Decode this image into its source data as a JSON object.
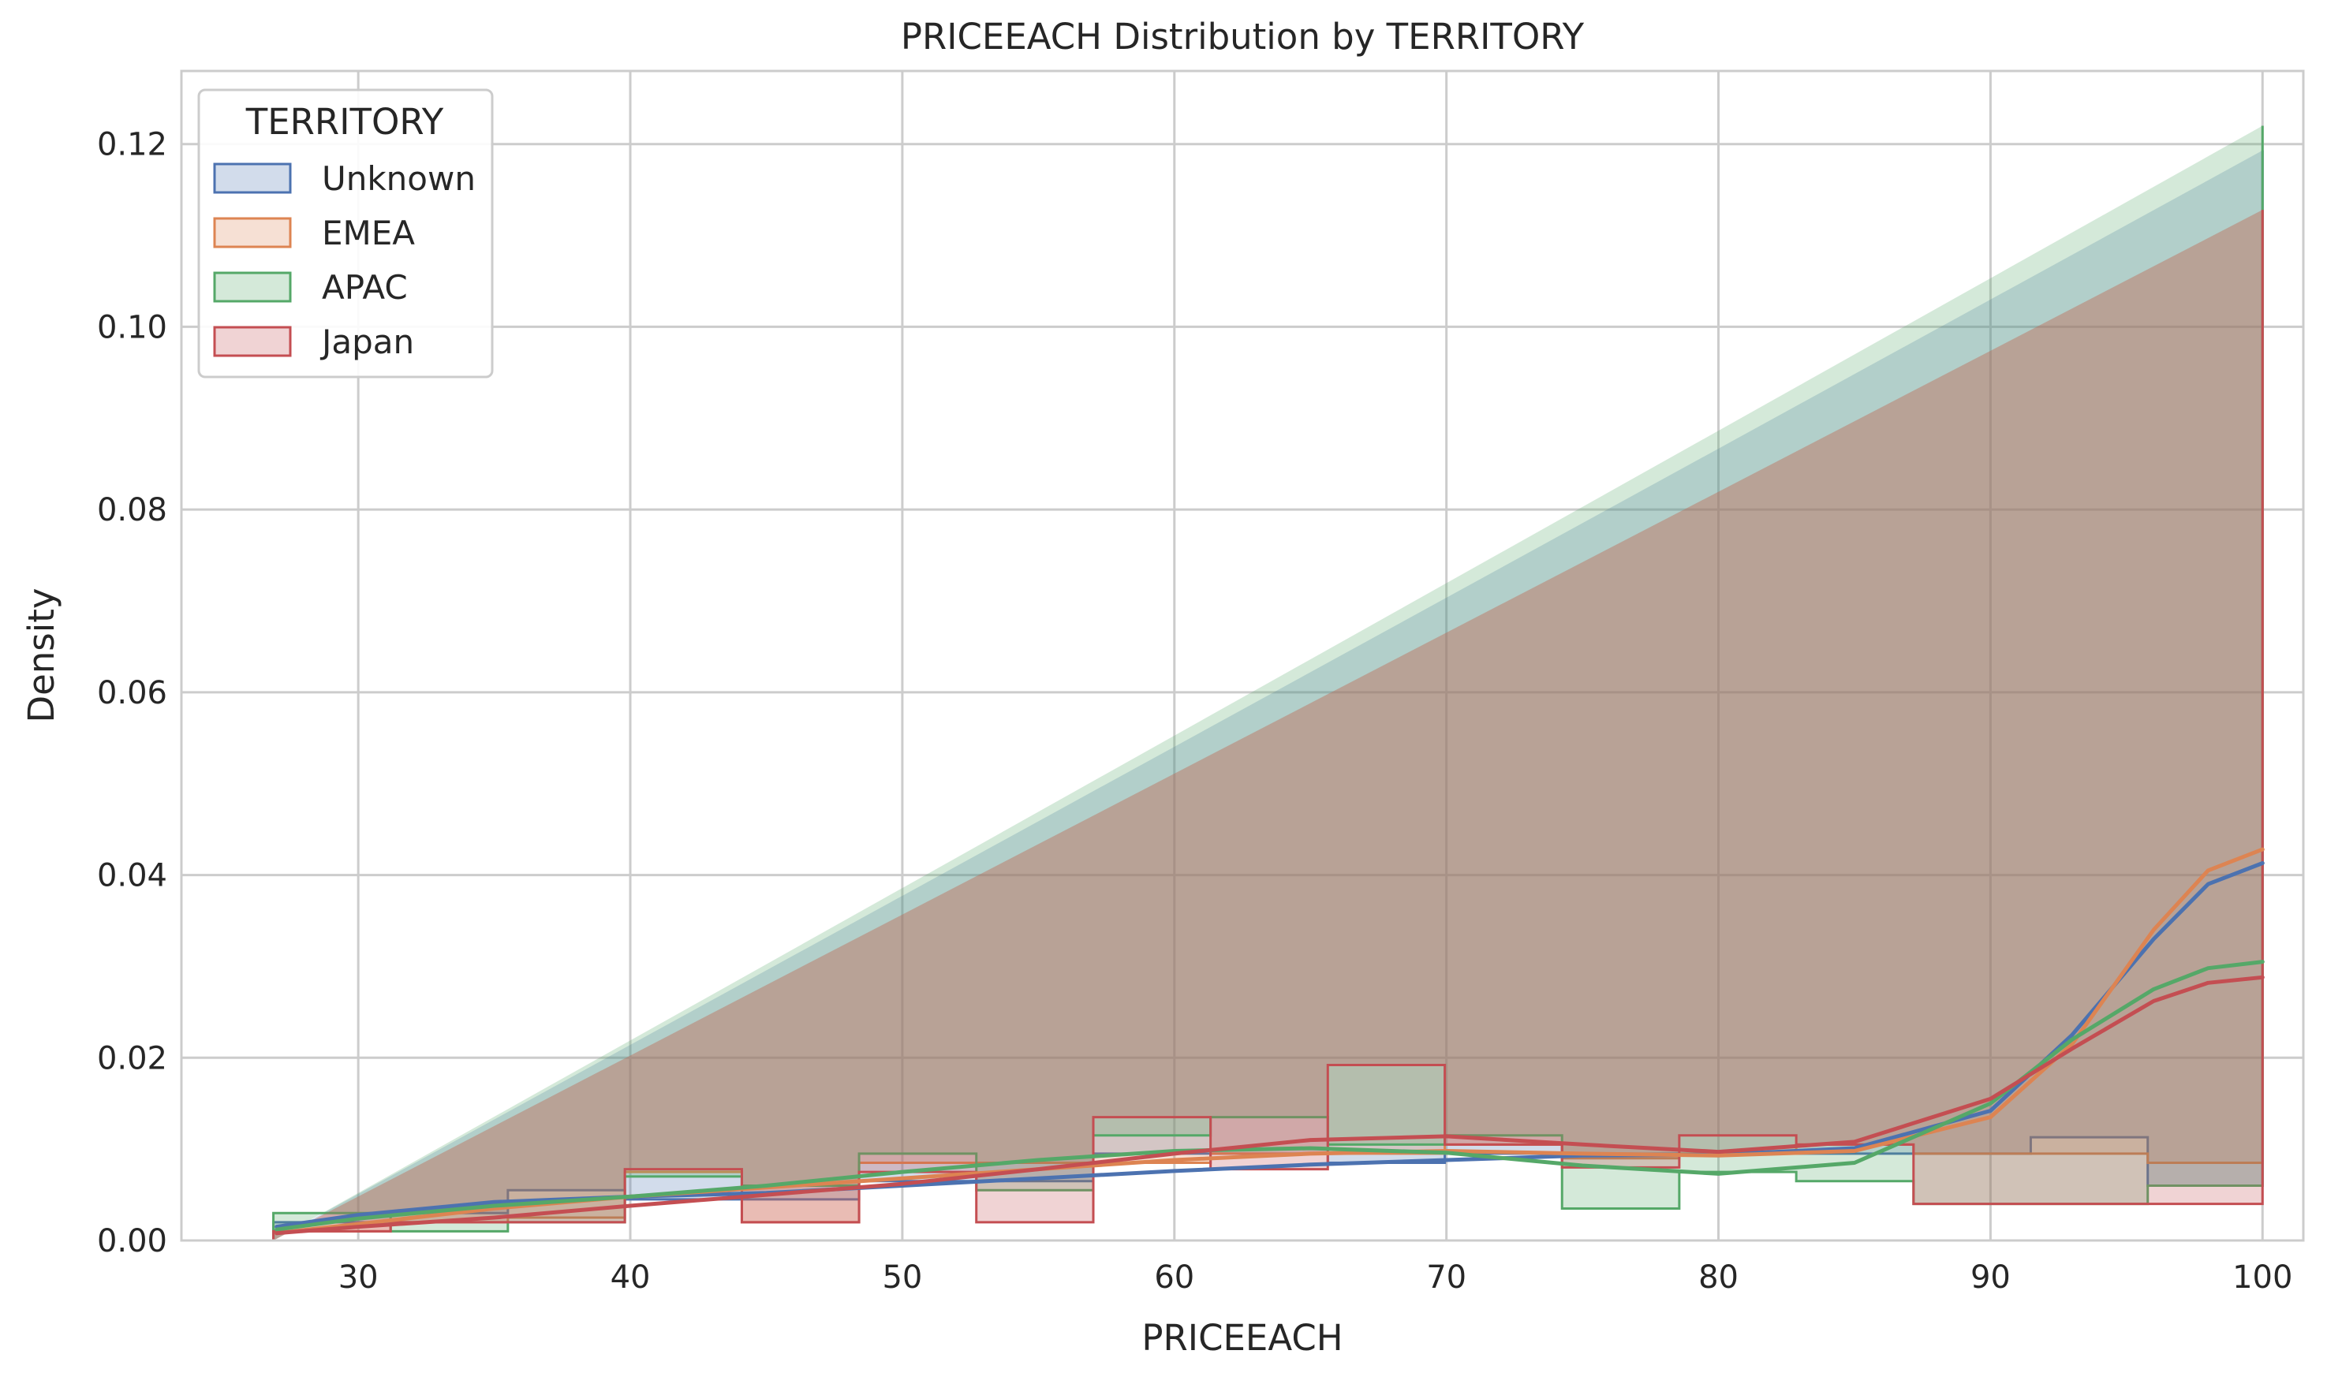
{
  "chart_data": {
    "type": "histogram",
    "title": "PRICEEACH Distribution by TERRITORY",
    "xlabel": "PRICEEACH",
    "ylabel": "Density",
    "xlim": [
      23.5,
      101.5
    ],
    "ylim": [
      0,
      0.128
    ],
    "xticks": [
      "30",
      "40",
      "50",
      "60",
      "70",
      "80",
      "90",
      "100"
    ],
    "xtick_values": [
      30,
      40,
      50,
      60,
      70,
      80,
      90,
      100
    ],
    "yticks": [
      "0.00",
      "0.02",
      "0.04",
      "0.06",
      "0.08",
      "0.10",
      "0.12"
    ],
    "ytick_values": [
      0,
      0.02,
      0.04,
      0.06,
      0.08,
      0.1,
      0.12
    ],
    "grid": true,
    "legend": {
      "title": "TERRITORY",
      "placement": "top-left"
    },
    "bin_edges": [
      26.88,
      31.19,
      35.5,
      39.8,
      44.1,
      48.41,
      52.72,
      57.02,
      61.33,
      65.64,
      69.94,
      74.25,
      78.56,
      82.86,
      87.17,
      91.48,
      95.78,
      100.0
    ],
    "series": [
      {
        "name": "Unknown",
        "color": "#4c72b0",
        "densities": [
          0.002,
          0.003,
          0.0055,
          0.0045,
          0.0045,
          0.0065,
          0.0065,
          0.0095,
          0.0095,
          0.0085,
          0.0095,
          0.0095,
          0.0095,
          0.0095,
          0.0095,
          0.0113,
          0.006,
          0.1193
        ],
        "kde_x": [
          27,
          30,
          35,
          40,
          45,
          50,
          55,
          60,
          65,
          70,
          75,
          80,
          85,
          90,
          93,
          96,
          98,
          100
        ],
        "kde_y": [
          0.0015,
          0.0028,
          0.0042,
          0.0048,
          0.0052,
          0.006,
          0.0068,
          0.0076,
          0.0083,
          0.0088,
          0.0093,
          0.0094,
          0.0101,
          0.0142,
          0.0225,
          0.033,
          0.039,
          0.0413
        ]
      },
      {
        "name": "EMEA",
        "color": "#dd8452",
        "densities": [
          0.001,
          0.002,
          0.0025,
          0.0075,
          0.002,
          0.0085,
          0.0085,
          0.0085,
          0.0095,
          0.0095,
          0.0105,
          0.009,
          0.0095,
          0.0105,
          0.0095,
          0.0095,
          0.0085,
          0.1128
        ],
        "kde_x": [
          27,
          30,
          35,
          40,
          45,
          50,
          55,
          60,
          65,
          70,
          75,
          80,
          85,
          90,
          93,
          96,
          98,
          100
        ],
        "kde_y": [
          0.0008,
          0.0018,
          0.0035,
          0.0048,
          0.0058,
          0.0068,
          0.0078,
          0.0088,
          0.0095,
          0.0098,
          0.0095,
          0.0093,
          0.0098,
          0.0135,
          0.0215,
          0.034,
          0.0405,
          0.0428
        ]
      },
      {
        "name": "APAC",
        "color": "#55a868",
        "densities": [
          0.003,
          0.001,
          0.002,
          0.007,
          0.006,
          0.0095,
          0.0055,
          0.0115,
          0.0135,
          0.0105,
          0.0115,
          0.0035,
          0.0075,
          0.0065,
          0.004,
          0.004,
          0.006,
          0.122
        ],
        "kde_x": [
          27,
          30,
          35,
          40,
          45,
          50,
          55,
          60,
          65,
          70,
          75,
          80,
          85,
          90,
          93,
          96,
          98,
          100
        ],
        "kde_y": [
          0.0012,
          0.0024,
          0.0038,
          0.0048,
          0.006,
          0.0075,
          0.0088,
          0.0098,
          0.0101,
          0.0096,
          0.0082,
          0.0073,
          0.0085,
          0.015,
          0.022,
          0.0275,
          0.0298,
          0.0305
        ]
      },
      {
        "name": "Japan",
        "color": "#c44e52",
        "densities": [
          0.001,
          0.002,
          0.002,
          0.0078,
          0.002,
          0.0075,
          0.002,
          0.0135,
          0.0078,
          0.0192,
          0.0105,
          0.008,
          0.0115,
          0.0105,
          0.004,
          0.004,
          0.004,
          0.1128
        ],
        "kde_x": [
          27,
          30,
          35,
          40,
          45,
          50,
          55,
          60,
          65,
          70,
          75,
          80,
          85,
          90,
          93,
          96,
          98,
          100
        ],
        "kde_y": [
          0.0008,
          0.0015,
          0.0025,
          0.0038,
          0.005,
          0.0062,
          0.0078,
          0.0095,
          0.011,
          0.0114,
          0.0105,
          0.0097,
          0.0108,
          0.0155,
          0.021,
          0.0262,
          0.0282,
          0.0288
        ]
      }
    ]
  }
}
